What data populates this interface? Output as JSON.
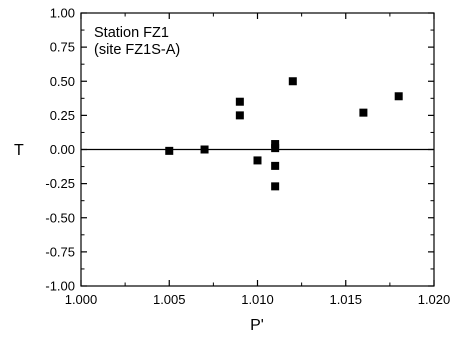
{
  "chart_data": {
    "type": "scatter",
    "xlabel": "P'",
    "ylabel": "T",
    "xlim": [
      1.0,
      1.02
    ],
    "ylim": [
      -1.0,
      1.0
    ],
    "xticks": [
      "1.000",
      "1.005",
      "1.010",
      "1.015",
      "1.020"
    ],
    "yticks": [
      "1.00",
      "0.75",
      "0.50",
      "0.25",
      "0.00",
      "-0.25",
      "-0.50",
      "-0.75",
      "-1.00"
    ],
    "annotation": [
      "Station FZ1",
      "(site FZ1S-A)"
    ],
    "grid": false,
    "reference_line_y": 0,
    "marker_color": "#000000",
    "points": [
      {
        "x": 1.005,
        "y": -0.01
      },
      {
        "x": 1.007,
        "y": 0.0
      },
      {
        "x": 1.009,
        "y": 0.35
      },
      {
        "x": 1.009,
        "y": 0.25
      },
      {
        "x": 1.01,
        "y": -0.08
      },
      {
        "x": 1.011,
        "y": 0.04
      },
      {
        "x": 1.011,
        "y": 0.01
      },
      {
        "x": 1.011,
        "y": -0.12
      },
      {
        "x": 1.011,
        "y": -0.27
      },
      {
        "x": 1.012,
        "y": 0.5
      },
      {
        "x": 1.016,
        "y": 0.27
      },
      {
        "x": 1.018,
        "y": 0.39
      }
    ]
  }
}
